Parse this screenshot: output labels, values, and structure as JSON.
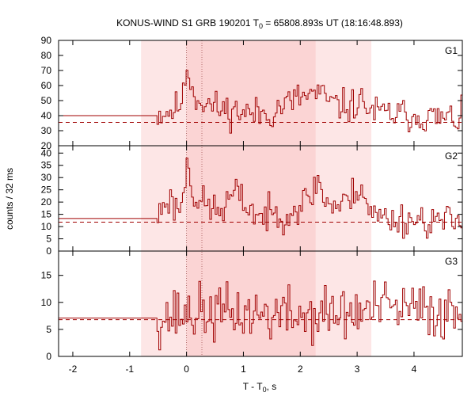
{
  "chart_data": {
    "type": "line",
    "title_main": "KONUS-WIND S1 GRB 190201 T",
    "title_sub": "0",
    "title_rest": " = 65808.893s UT (18:16:48.893)",
    "xlabel_main": "T - T",
    "xlabel_sub": "0",
    "xlabel_rest": ", s",
    "ylabel": "counts / 32 ms",
    "xlim": [
      -2.25,
      4.85
    ],
    "x_ticks": [
      -2,
      -1,
      0,
      1,
      2,
      3,
      4
    ],
    "x_tick_labels": [
      "-2",
      "-1",
      "0",
      "1",
      "2",
      "3",
      "4"
    ],
    "shaded_intervals": [
      {
        "x0": -0.8,
        "x1": 3.25,
        "color": "#fde6e6"
      },
      {
        "x0": 0.0,
        "x1": 2.27,
        "color": "#fbd4d4"
      }
    ],
    "vertical_markers": [
      0.0,
      0.27
    ],
    "line_color": "#a00000",
    "panels": [
      {
        "name": "G1",
        "ylim": [
          20,
          90
        ],
        "y_ticks": [
          20,
          30,
          40,
          50,
          60,
          70,
          80,
          90
        ],
        "y_tick_labels": [
          "20",
          "30",
          "40",
          "50",
          "60",
          "70",
          "80",
          "90"
        ],
        "background": 35.5,
        "pre_level": 40,
        "pre_end": -0.52,
        "seed": 11,
        "noise": 5.5,
        "envelope": [
          [
            -0.52,
            41
          ],
          [
            -0.2,
            44
          ],
          [
            -0.05,
            52
          ],
          [
            0.0,
            74
          ],
          [
            0.05,
            68
          ],
          [
            0.12,
            54
          ],
          [
            0.3,
            49
          ],
          [
            0.6,
            44
          ],
          [
            0.9,
            43
          ],
          [
            1.2,
            41
          ],
          [
            1.5,
            42
          ],
          [
            1.7,
            47
          ],
          [
            2.0,
            52
          ],
          [
            2.3,
            55
          ],
          [
            2.6,
            47
          ],
          [
            2.9,
            46
          ],
          [
            3.05,
            50
          ],
          [
            3.3,
            42
          ],
          [
            3.6,
            41
          ],
          [
            4.0,
            40
          ],
          [
            4.5,
            38
          ],
          [
            4.85,
            38
          ]
        ]
      },
      {
        "name": "G2",
        "ylim": [
          0,
          43
        ],
        "y_ticks": [
          0,
          5,
          10,
          15,
          20,
          25,
          30,
          35,
          40
        ],
        "y_tick_labels": [
          "0",
          "5",
          "10",
          "15",
          "20",
          "25",
          "30",
          "35",
          "40"
        ],
        "background": 11.8,
        "pre_level": 13.3,
        "pre_end": -0.52,
        "seed": 23,
        "noise": 3.5,
        "envelope": [
          [
            -0.52,
            13
          ],
          [
            -0.35,
            22
          ],
          [
            -0.2,
            18
          ],
          [
            -0.05,
            20
          ],
          [
            0.0,
            40
          ],
          [
            0.05,
            33
          ],
          [
            0.15,
            21
          ],
          [
            0.4,
            18
          ],
          [
            0.6,
            16
          ],
          [
            0.85,
            24
          ],
          [
            1.0,
            20
          ],
          [
            1.3,
            14
          ],
          [
            1.6,
            15
          ],
          [
            1.9,
            17
          ],
          [
            2.2,
            22
          ],
          [
            2.3,
            30
          ],
          [
            2.45,
            20
          ],
          [
            2.7,
            18
          ],
          [
            2.9,
            22
          ],
          [
            3.05,
            28
          ],
          [
            3.25,
            15
          ],
          [
            3.6,
            13
          ],
          [
            4.0,
            13
          ],
          [
            4.5,
            12
          ],
          [
            4.85,
            12
          ]
        ]
      },
      {
        "name": "G3",
        "ylim": [
          0,
          19.5
        ],
        "y_ticks": [
          0,
          5,
          10,
          15
        ],
        "y_tick_labels": [
          "0",
          "5",
          "10",
          "15"
        ],
        "background": 6.8,
        "pre_level": 7.1,
        "pre_end": -0.52,
        "seed": 37,
        "noise": 2.6,
        "envelope": [
          [
            -0.52,
            7
          ],
          [
            0.0,
            8
          ],
          [
            1.0,
            8
          ],
          [
            2.0,
            7.5
          ],
          [
            3.0,
            8
          ],
          [
            3.4,
            9
          ],
          [
            4.85,
            8
          ]
        ]
      }
    ]
  }
}
